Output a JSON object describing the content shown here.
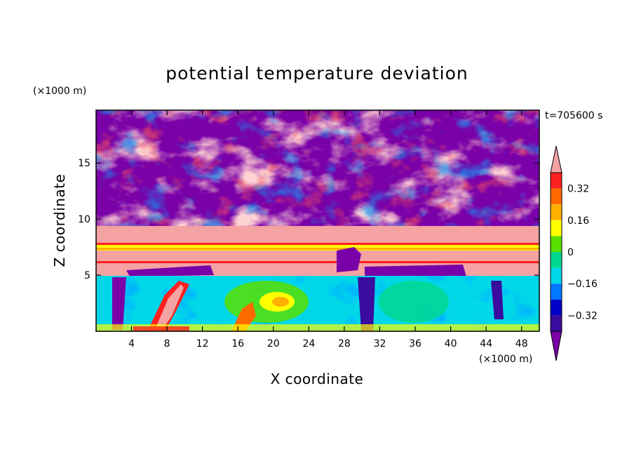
{
  "chart_data": {
    "type": "heatmap",
    "title": "potential temperature deviation",
    "xlabel": "X coordinate",
    "ylabel": "Z coordinate",
    "x_unit": "(×1000 m)",
    "y_unit": "(×1000 m)",
    "time_label": "t=705600 s",
    "xlim": [
      0,
      50
    ],
    "ylim": [
      0,
      19.7
    ],
    "x_ticks": [
      4,
      8,
      12,
      16,
      20,
      24,
      28,
      32,
      36,
      40,
      44,
      48
    ],
    "y_ticks": [
      5,
      10,
      15
    ],
    "colorbar": {
      "levels": [
        -0.4,
        -0.32,
        -0.24,
        -0.16,
        -0.08,
        0,
        0.08,
        0.16,
        0.24,
        0.32,
        0.4
      ],
      "labels": [
        "0.32",
        "0.16",
        "0",
        "−0.16",
        "−0.32"
      ],
      "label_values": [
        0.32,
        0.16,
        0,
        -0.16,
        -0.32
      ],
      "colors": [
        "#7a00a8",
        "#3a0ca0",
        "#0000c8",
        "#0078ff",
        "#00d8e8",
        "#00d890",
        "#58e000",
        "#ffff00",
        "#ffb000",
        "#ff6a00",
        "#ff2020",
        "#f4a2a2"
      ],
      "extend": "both"
    },
    "regions": [
      {
        "name": "lower layer",
        "z": [
          0,
          6
        ],
        "pattern": "turbulent green/cyan with red and purple plumes"
      },
      {
        "name": "inversion band",
        "z": [
          6,
          8
        ],
        "pattern": "pink/yellow horizontal bands"
      },
      {
        "name": "upper layer",
        "z": [
          8,
          19.7
        ],
        "pattern": "large purple and pink patches with turbulent edges"
      }
    ]
  }
}
